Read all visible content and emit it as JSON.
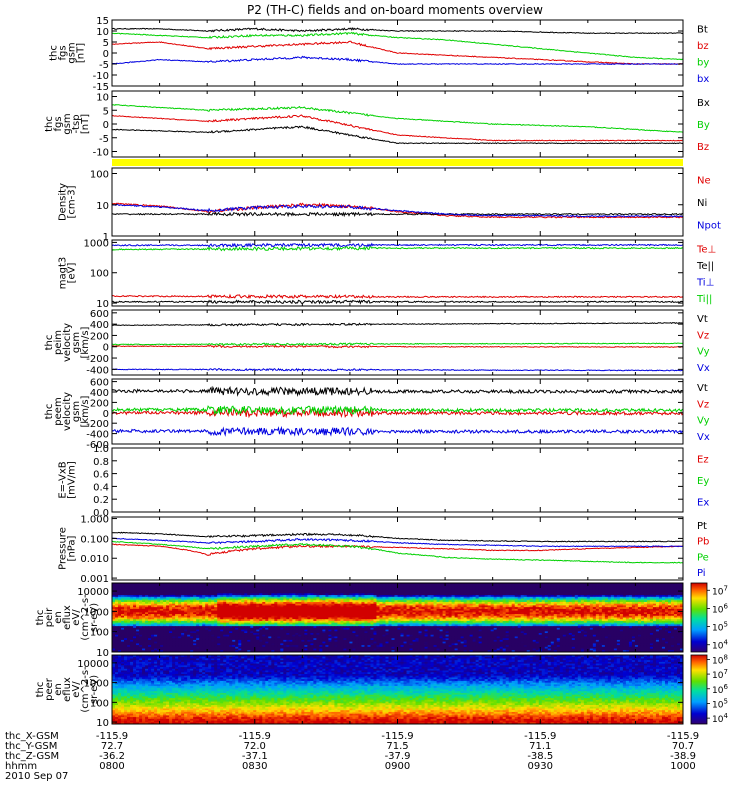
{
  "title": "P2 (TH-C) fields and on-board moments overview",
  "date_label": "2010 Sep 07",
  "colors": {
    "black": "#000000",
    "red": "#e00000",
    "green": "#00d000",
    "blue": "#0000e0",
    "yellow": "#ffff00"
  },
  "ephemeris": {
    "row_labels": [
      "thc_X-GSM",
      "thc_Y-GSM",
      "thc_Z-GSM",
      "hhmm"
    ],
    "columns": [
      {
        "x": "-115.9",
        "y": "72.7",
        "z": "-36.2",
        "t": "0800"
      },
      {
        "x": "-115.9",
        "y": "72.0",
        "z": "-37.1",
        "t": "0830"
      },
      {
        "x": "-115.9",
        "y": "71.5",
        "z": "-37.9",
        "t": "0900"
      },
      {
        "x": "-115.9",
        "y": "71.1",
        "z": "-38.5",
        "t": "0930"
      },
      {
        "x": "-115.9",
        "y": "70.7",
        "z": "-38.9",
        "t": "1000"
      }
    ]
  },
  "chart_data": [
    {
      "type": "line",
      "ylabel": [
        "thc",
        "fgs",
        "gsm",
        "[nT]"
      ],
      "ylim": [
        -15,
        15
      ],
      "y_ticks": [
        "15",
        "10",
        "5",
        "0",
        "-5",
        "-10",
        "-15"
      ],
      "series": [
        {
          "name": "Bt",
          "color": "black",
          "x": [
            0,
            10,
            20,
            30,
            40,
            50,
            60,
            70,
            80,
            90,
            100,
            110,
            120
          ],
          "values": [
            11,
            11,
            10,
            11,
            10,
            11,
            10,
            10,
            10,
            9.5,
            9,
            9,
            9
          ]
        },
        {
          "name": "bz",
          "color": "red",
          "x": [
            0,
            10,
            20,
            30,
            40,
            50,
            60,
            70,
            80,
            90,
            100,
            110,
            120
          ],
          "values": [
            4,
            5,
            2,
            3,
            4,
            5,
            0,
            -1,
            -2,
            -3,
            -4,
            -5,
            -5
          ]
        },
        {
          "name": "by",
          "color": "green",
          "x": [
            0,
            10,
            20,
            30,
            40,
            50,
            60,
            70,
            80,
            90,
            100,
            110,
            120
          ],
          "values": [
            9,
            8,
            7,
            8,
            8,
            9,
            7,
            6,
            4,
            2,
            0,
            -2,
            -3
          ]
        },
        {
          "name": "bx",
          "color": "blue",
          "x": [
            0,
            10,
            20,
            30,
            40,
            50,
            60,
            70,
            80,
            90,
            100,
            110,
            120
          ],
          "values": [
            -5,
            -3,
            -4,
            -3,
            -2,
            -3,
            -5,
            -5,
            -5,
            -5,
            -5,
            -5,
            -5
          ]
        }
      ]
    },
    {
      "type": "line",
      "ylabel": [
        "thc",
        "fgs",
        "gsm",
        "-tsp",
        "[nT]"
      ],
      "ylim": [
        -12,
        12
      ],
      "y_ticks": [
        "10",
        "5",
        "0",
        "-5",
        "-10"
      ],
      "series": [
        {
          "name": "Bx",
          "color": "black",
          "x": [
            0,
            20,
            40,
            60,
            80,
            100,
            120
          ],
          "values": [
            -2,
            -3,
            -1,
            -7,
            -7,
            -7,
            -7
          ]
        },
        {
          "name": "By",
          "color": "green",
          "x": [
            0,
            20,
            40,
            60,
            80,
            100,
            120
          ],
          "values": [
            7,
            5,
            6,
            2,
            0,
            -1,
            -3
          ]
        },
        {
          "name": "Bz",
          "color": "red",
          "x": [
            0,
            20,
            40,
            60,
            80,
            100,
            120
          ],
          "values": [
            3,
            1,
            3,
            -4,
            -6,
            -6,
            -6
          ]
        }
      ]
    },
    {
      "type": "line",
      "ylabel": [
        "Density",
        "[cm-3]"
      ],
      "scale": "log",
      "ylim": [
        1,
        150
      ],
      "y_ticks": [
        "100",
        "10",
        "1"
      ],
      "series": [
        {
          "name": "Ne",
          "color": "red",
          "x": [
            0,
            10,
            20,
            30,
            40,
            50,
            60,
            70,
            80,
            90,
            100,
            110,
            120
          ],
          "values": [
            11,
            9,
            6,
            8,
            10,
            9,
            6,
            4.5,
            4,
            4,
            4,
            4,
            4
          ]
        },
        {
          "name": "Ni",
          "color": "black",
          "x": [
            0,
            120
          ],
          "values": [
            5,
            5
          ]
        },
        {
          "name": "Npot",
          "color": "blue",
          "x": [
            0,
            10,
            20,
            30,
            40,
            50,
            60,
            70,
            80,
            90,
            100,
            110,
            120
          ],
          "values": [
            10,
            8.5,
            6.5,
            8,
            9,
            8.5,
            6.5,
            5,
            4.5,
            4.5,
            4.3,
            4.3,
            4.3
          ]
        }
      ]
    },
    {
      "type": "line",
      "ylabel": [
        "magt3",
        "[eV]"
      ],
      "scale": "log",
      "ylim": [
        8,
        1200
      ],
      "y_ticks": [
        "1000",
        "100",
        "10"
      ],
      "series": [
        {
          "name": "Te⊥",
          "color": "red",
          "x": [
            0,
            60,
            120
          ],
          "values": [
            17,
            16,
            16
          ]
        },
        {
          "name": "Te||",
          "color": "black",
          "x": [
            0,
            60,
            120
          ],
          "values": [
            11,
            11,
            11
          ]
        },
        {
          "name": "Ti⊥",
          "color": "blue",
          "x": [
            0,
            60,
            120
          ],
          "values": [
            800,
            820,
            820
          ]
        },
        {
          "name": "Ti||",
          "color": "green",
          "x": [
            0,
            60,
            120
          ],
          "values": [
            580,
            650,
            650
          ]
        }
      ]
    },
    {
      "type": "line",
      "ylabel": [
        "thc",
        "peim",
        "velocity",
        "gsm",
        "[km/s]"
      ],
      "ylim": [
        -500,
        650
      ],
      "y_ticks": [
        "600",
        "400",
        "200",
        "0",
        "-200",
        "-400"
      ],
      "series": [
        {
          "name": "Vt",
          "color": "black",
          "x": [
            0,
            60,
            120
          ],
          "values": [
            380,
            400,
            420
          ]
        },
        {
          "name": "Vz",
          "color": "red",
          "x": [
            0,
            60,
            120
          ],
          "values": [
            10,
            0,
            -5
          ]
        },
        {
          "name": "Vy",
          "color": "green",
          "x": [
            0,
            60,
            120
          ],
          "values": [
            40,
            50,
            60
          ]
        },
        {
          "name": "Vx",
          "color": "blue",
          "x": [
            0,
            60,
            120
          ],
          "values": [
            -400,
            -410,
            -420
          ]
        }
      ]
    },
    {
      "type": "line",
      "ylabel": [
        "thc",
        "peem",
        "velocity",
        "gsm",
        "[km/s]"
      ],
      "ylim": [
        -600,
        650
      ],
      "y_ticks": [
        "600",
        "400",
        "200",
        "0",
        "-200",
        "-400",
        "-600"
      ],
      "series": [
        {
          "name": "Vt",
          "color": "black",
          "x": [
            0,
            60,
            120
          ],
          "values": [
            420,
            410,
            410
          ]
        },
        {
          "name": "Vz",
          "color": "red",
          "x": [
            0,
            60,
            120
          ],
          "values": [
            0,
            -5,
            -10
          ]
        },
        {
          "name": "Vy",
          "color": "green",
          "x": [
            0,
            60,
            120
          ],
          "values": [
            60,
            50,
            50
          ]
        },
        {
          "name": "Vx",
          "color": "blue",
          "x": [
            0,
            60,
            120
          ],
          "values": [
            -350,
            -360,
            -360
          ]
        }
      ]
    },
    {
      "type": "line",
      "ylabel": [
        "E=-VxB",
        "[mV/m]"
      ],
      "ylim": [
        0,
        1.0
      ],
      "y_ticks": [
        "1.0",
        "0.8",
        "0.6",
        "0.4",
        "0.2",
        "0.0"
      ],
      "series": [
        {
          "name": "Ez",
          "color": "red",
          "x": [],
          "values": []
        },
        {
          "name": "Ey",
          "color": "green",
          "x": [],
          "values": []
        },
        {
          "name": "Ex",
          "color": "blue",
          "x": [],
          "values": []
        }
      ]
    },
    {
      "type": "line",
      "ylabel": [
        "Pressure",
        "[nPa]"
      ],
      "scale": "log",
      "ylim": [
        0.0008,
        1.2
      ],
      "y_ticks": [
        "1.000",
        "0.100",
        "0.010",
        "0.001"
      ],
      "series": [
        {
          "name": "Pt",
          "color": "black",
          "x": [
            0,
            10,
            20,
            30,
            40,
            50,
            60,
            70,
            80,
            90,
            100,
            110,
            120
          ],
          "values": [
            0.2,
            0.17,
            0.12,
            0.14,
            0.16,
            0.15,
            0.1,
            0.08,
            0.075,
            0.07,
            0.07,
            0.07,
            0.07
          ]
        },
        {
          "name": "Pb",
          "color": "red",
          "x": [
            0,
            10,
            20,
            30,
            40,
            50,
            60,
            70,
            80,
            90,
            100,
            110,
            120
          ],
          "values": [
            0.05,
            0.04,
            0.015,
            0.03,
            0.04,
            0.04,
            0.035,
            0.03,
            0.025,
            0.025,
            0.03,
            0.035,
            0.04
          ]
        },
        {
          "name": "Pe",
          "color": "green",
          "x": [
            0,
            10,
            20,
            30,
            40,
            50,
            60,
            70,
            80,
            90,
            100,
            110,
            120
          ],
          "values": [
            0.07,
            0.05,
            0.03,
            0.04,
            0.05,
            0.04,
            0.018,
            0.011,
            0.009,
            0.008,
            0.007,
            0.006,
            0.006
          ]
        },
        {
          "name": "Pi",
          "color": "blue",
          "x": [
            0,
            10,
            20,
            30,
            40,
            50,
            60,
            70,
            80,
            90,
            100,
            110,
            120
          ],
          "values": [
            0.1,
            0.08,
            0.06,
            0.07,
            0.09,
            0.08,
            0.06,
            0.05,
            0.045,
            0.04,
            0.04,
            0.04,
            0.04
          ]
        }
      ]
    },
    {
      "type": "heatmap",
      "ylabel": [
        "thc",
        "peir",
        "en",
        "eflux",
        "eV/",
        "(cm^2-s-",
        "sr-eV)"
      ],
      "scale": "log",
      "ylim": [
        10,
        25000
      ],
      "y_ticks": [
        "10000",
        "1000",
        "100",
        "10"
      ],
      "colorbar_ticks": [
        "10^7",
        "10^6",
        "10^5",
        "10^4"
      ],
      "colorbar_range_exp": [
        3.6,
        7.4
      ],
      "peak_energy_eV": 1000
    },
    {
      "type": "heatmap",
      "ylabel": [
        "thc",
        "peer",
        "en",
        "eflux",
        "eV/",
        "(cm^2-s-",
        "sr-eV)"
      ],
      "scale": "log",
      "ylim": [
        8,
        25000
      ],
      "y_ticks": [
        "10000",
        "1000",
        "100",
        "10"
      ],
      "colorbar_ticks": [
        "10^8",
        "10^7",
        "10^6",
        "10^5",
        "10^4"
      ],
      "colorbar_range_exp": [
        3.6,
        8.3
      ],
      "peak_energy_eV": 12
    }
  ]
}
